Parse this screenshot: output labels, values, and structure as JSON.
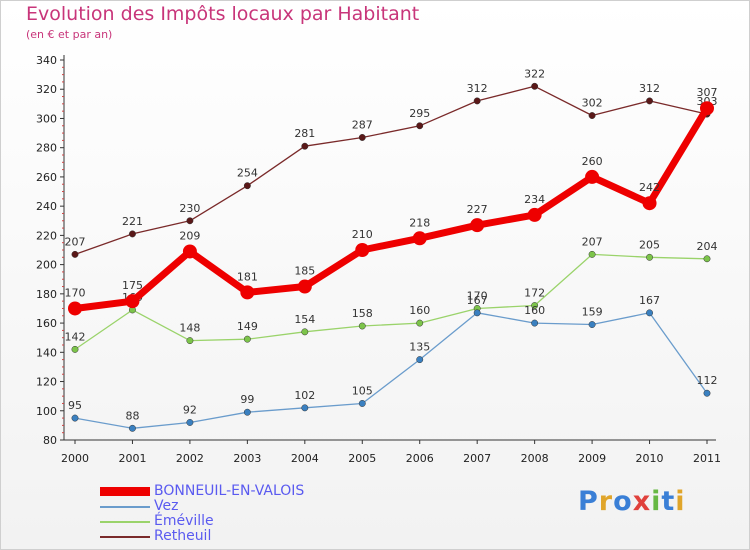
{
  "header": {
    "title": "Evolution des Impôts locaux par Habitant",
    "subtitle": "(en € et par an)"
  },
  "logo": {
    "text": "Proxiti",
    "letter_colors": [
      "#3a7fd6",
      "#e0a52a",
      "#3a7fd6",
      "#e0413c",
      "#67b843",
      "#3a7fd6",
      "#e0a52a"
    ]
  },
  "chart_data": {
    "type": "line",
    "title": "Evolution des Impôts locaux par Habitant",
    "subtitle": "(en € et par an)",
    "xlabel": "",
    "ylabel": "",
    "x": [
      "2000",
      "2001",
      "2002",
      "2003",
      "2004",
      "2005",
      "2006",
      "2007",
      "2008",
      "2009",
      "2010",
      "2011"
    ],
    "ylim": [
      80,
      340
    ],
    "yticks": [
      80,
      100,
      120,
      140,
      160,
      180,
      200,
      220,
      240,
      260,
      280,
      300,
      320,
      340
    ],
    "grid": false,
    "legend_position": "bottom-left",
    "series": [
      {
        "name": "Retheuil",
        "color": "#7a2a2a",
        "marker": "#5a1818",
        "values": [
          207,
          221,
          230,
          254,
          281,
          287,
          295,
          312,
          322,
          302,
          312,
          303
        ],
        "labels": [
          "207",
          "221",
          "230",
          "254",
          "281",
          "287",
          "295",
          "312",
          "322",
          "302",
          "312",
          "303"
        ]
      },
      {
        "name": "Éméville",
        "color": "#9ad36a",
        "marker": "#7cc44a",
        "values": [
          142,
          169,
          148,
          149,
          154,
          158,
          160,
          170,
          172,
          207,
          205,
          204
        ],
        "labels": [
          "142",
          "169",
          "148",
          "149",
          "154",
          "158",
          "160",
          "170",
          "172",
          "207",
          "205",
          "204"
        ]
      },
      {
        "name": "Vez",
        "color": "#6a9ccc",
        "marker": "#3a80c0",
        "values": [
          95,
          88,
          92,
          99,
          102,
          105,
          135,
          167,
          160,
          159,
          167,
          112
        ],
        "labels": [
          "95",
          "88",
          "92",
          "99",
          "102",
          "105",
          "135",
          "167",
          "160",
          "159",
          "167",
          "112"
        ]
      },
      {
        "name": "BONNEUIL-EN-VALOIS",
        "color": "#ee0000",
        "marker": "#ee0000",
        "values": [
          170,
          175,
          209,
          181,
          185,
          210,
          218,
          227,
          234,
          260,
          242,
          307
        ],
        "labels": [
          "170",
          "175",
          "209",
          "181",
          "185",
          "210",
          "218",
          "227",
          "234",
          "260",
          "242",
          "307"
        ]
      }
    ]
  },
  "legend": {
    "items": [
      {
        "label": "BONNEUIL-EN-VALOIS",
        "color": "#ee0000"
      },
      {
        "label": "Vez",
        "color": "#6a9ccc"
      },
      {
        "label": "Éméville",
        "color": "#9ad36a"
      },
      {
        "label": "Retheuil",
        "color": "#7a2a2a"
      }
    ]
  }
}
